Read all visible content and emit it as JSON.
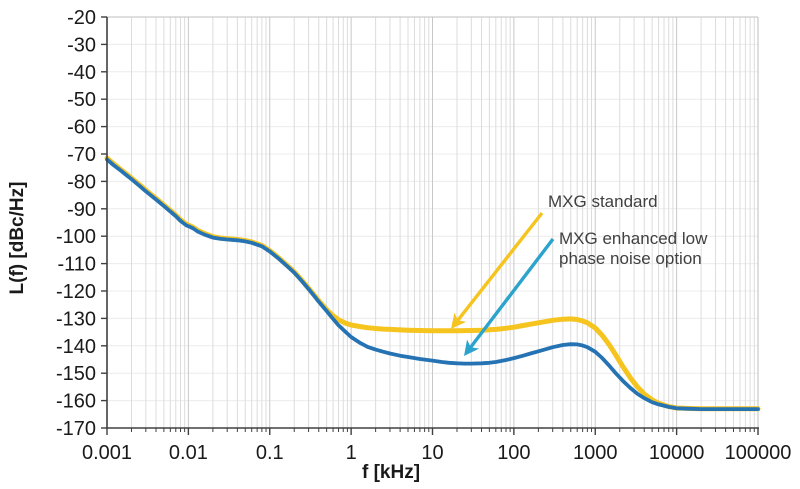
{
  "chart_data": {
    "type": "line",
    "x_scale": "log",
    "title": "",
    "xlabel": "f [kHz]",
    "ylabel": "L(f) [dBc/Hz]",
    "xlim": [
      0.001,
      100000
    ],
    "ylim": [
      -170,
      -20
    ],
    "grid": {
      "vertical_log_minor": true,
      "horizontal": true
    },
    "legend_position": "none",
    "x_tick_labels": [
      "0.001",
      "0.01",
      "0.1",
      "1",
      "10",
      "100",
      "1000",
      "10000",
      "100000"
    ],
    "y_ticks": [
      -20,
      -30,
      -40,
      -50,
      -60,
      -70,
      -80,
      -90,
      -100,
      -110,
      -120,
      -130,
      -140,
      -150,
      -160,
      -170
    ],
    "colors": {
      "standard_curve": "#F5C41F",
      "enhanced_curve": "#2673B4",
      "standard_arrow": "#F5C41F",
      "enhanced_arrow": "#2BA3CC",
      "axis": "#404040",
      "tick_text": "#1a1a1a",
      "grid_minor": "#dcdcdc",
      "grid_major": "#c8c8c8",
      "grid_horizontal": "#ececec",
      "border": "#bfbfbf",
      "annotation_text": "#404040"
    },
    "series": [
      {
        "name": "MXG standard",
        "color": "#F5C41F",
        "points": [
          [
            0.001,
            -71.5
          ],
          [
            0.0012,
            -73.5
          ],
          [
            0.0015,
            -75.8
          ],
          [
            0.002,
            -78.8
          ],
          [
            0.0025,
            -81.2
          ],
          [
            0.003,
            -83.2
          ],
          [
            0.004,
            -86.2
          ],
          [
            0.005,
            -88.6
          ],
          [
            0.006,
            -90.6
          ],
          [
            0.007,
            -92.3
          ],
          [
            0.008,
            -94.0
          ],
          [
            0.009,
            -95.2
          ],
          [
            0.0095,
            -95.7
          ],
          [
            0.0105,
            -96.2
          ],
          [
            0.0115,
            -96.8
          ],
          [
            0.013,
            -97.9
          ],
          [
            0.016,
            -99.1
          ],
          [
            0.02,
            -100.2
          ],
          [
            0.025,
            -100.7
          ],
          [
            0.03,
            -100.9
          ],
          [
            0.04,
            -101.2
          ],
          [
            0.05,
            -101.6
          ],
          [
            0.06,
            -102.1
          ],
          [
            0.08,
            -103.4
          ],
          [
            0.1,
            -105.3
          ],
          [
            0.13,
            -108.0
          ],
          [
            0.16,
            -110.4
          ],
          [
            0.2,
            -113.0
          ],
          [
            0.25,
            -116.2
          ],
          [
            0.3,
            -119.0
          ],
          [
            0.35,
            -121.4
          ],
          [
            0.4,
            -123.5
          ],
          [
            0.5,
            -126.8
          ],
          [
            0.6,
            -129.0
          ],
          [
            0.7,
            -130.5
          ],
          [
            0.85,
            -131.7
          ],
          [
            1,
            -132.4
          ],
          [
            1.3,
            -133.0
          ],
          [
            1.6,
            -133.4
          ],
          [
            2,
            -133.7
          ],
          [
            2.5,
            -133.9
          ],
          [
            3,
            -134.0
          ],
          [
            4,
            -134.2
          ],
          [
            5,
            -134.3
          ],
          [
            7,
            -134.4
          ],
          [
            10,
            -134.5
          ],
          [
            15,
            -134.5
          ],
          [
            20,
            -134.5
          ],
          [
            30,
            -134.4
          ],
          [
            40,
            -134.3
          ],
          [
            60,
            -134.0
          ],
          [
            80,
            -133.6
          ],
          [
            100,
            -133.2
          ],
          [
            130,
            -132.6
          ],
          [
            160,
            -132.1
          ],
          [
            200,
            -131.6
          ],
          [
            250,
            -131.1
          ],
          [
            300,
            -130.7
          ],
          [
            400,
            -130.3
          ],
          [
            500,
            -130.2
          ],
          [
            600,
            -130.4
          ],
          [
            700,
            -130.9
          ],
          [
            800,
            -131.6
          ],
          [
            1000,
            -133.5
          ],
          [
            1200,
            -136.0
          ],
          [
            1500,
            -139.8
          ],
          [
            1800,
            -143.5
          ],
          [
            2200,
            -147.7
          ],
          [
            2700,
            -151.7
          ],
          [
            3300,
            -155.0
          ],
          [
            4000,
            -157.6
          ],
          [
            5000,
            -159.7
          ],
          [
            6000,
            -161.0
          ],
          [
            8000,
            -162.2
          ],
          [
            10000,
            -162.7
          ],
          [
            15000,
            -162.9
          ],
          [
            20000,
            -163.0
          ],
          [
            30000,
            -163.0
          ],
          [
            50000,
            -163.0
          ],
          [
            70000,
            -163.0
          ],
          [
            100000,
            -163.0
          ]
        ]
      },
      {
        "name": "MXG enhanced low phase noise option",
        "color": "#2673B4",
        "points": [
          [
            0.001,
            -72.0
          ],
          [
            0.0012,
            -74.0
          ],
          [
            0.0015,
            -76.2
          ],
          [
            0.002,
            -79.2
          ],
          [
            0.0025,
            -81.6
          ],
          [
            0.003,
            -83.6
          ],
          [
            0.004,
            -86.6
          ],
          [
            0.005,
            -89.0
          ],
          [
            0.006,
            -91.0
          ],
          [
            0.007,
            -92.7
          ],
          [
            0.008,
            -94.4
          ],
          [
            0.009,
            -95.6
          ],
          [
            0.0095,
            -96.1
          ],
          [
            0.0105,
            -96.6
          ],
          [
            0.0115,
            -97.2
          ],
          [
            0.013,
            -98.3
          ],
          [
            0.016,
            -99.5
          ],
          [
            0.02,
            -100.5
          ],
          [
            0.025,
            -101.0
          ],
          [
            0.03,
            -101.2
          ],
          [
            0.04,
            -101.5
          ],
          [
            0.05,
            -101.9
          ],
          [
            0.06,
            -102.4
          ],
          [
            0.08,
            -103.7
          ],
          [
            0.1,
            -105.6
          ],
          [
            0.13,
            -108.3
          ],
          [
            0.16,
            -110.7
          ],
          [
            0.2,
            -113.3
          ],
          [
            0.25,
            -116.5
          ],
          [
            0.3,
            -119.3
          ],
          [
            0.35,
            -121.7
          ],
          [
            0.4,
            -123.9
          ],
          [
            0.5,
            -127.3
          ],
          [
            0.6,
            -130.2
          ],
          [
            0.7,
            -132.5
          ],
          [
            0.85,
            -134.9
          ],
          [
            1,
            -136.8
          ],
          [
            1.3,
            -139.0
          ],
          [
            1.6,
            -140.4
          ],
          [
            2,
            -141.4
          ],
          [
            2.5,
            -142.2
          ],
          [
            3,
            -142.8
          ],
          [
            4,
            -143.6
          ],
          [
            5,
            -144.1
          ],
          [
            7,
            -144.8
          ],
          [
            10,
            -145.4
          ],
          [
            13,
            -145.9
          ],
          [
            16,
            -146.2
          ],
          [
            20,
            -146.4
          ],
          [
            25,
            -146.5
          ],
          [
            30,
            -146.5
          ],
          [
            40,
            -146.4
          ],
          [
            50,
            -146.2
          ],
          [
            60,
            -145.9
          ],
          [
            80,
            -145.2
          ],
          [
            100,
            -144.5
          ],
          [
            130,
            -143.6
          ],
          [
            160,
            -142.8
          ],
          [
            200,
            -142.0
          ],
          [
            250,
            -141.2
          ],
          [
            300,
            -140.5
          ],
          [
            400,
            -139.7
          ],
          [
            500,
            -139.4
          ],
          [
            600,
            -139.5
          ],
          [
            700,
            -139.9
          ],
          [
            800,
            -140.5
          ],
          [
            1000,
            -142.2
          ],
          [
            1200,
            -144.3
          ],
          [
            1500,
            -147.4
          ],
          [
            1800,
            -150.1
          ],
          [
            2200,
            -152.9
          ],
          [
            2700,
            -155.4
          ],
          [
            3300,
            -157.5
          ],
          [
            4000,
            -159.1
          ],
          [
            5000,
            -160.6
          ],
          [
            6000,
            -161.4
          ],
          [
            8000,
            -162.3
          ],
          [
            10000,
            -162.8
          ],
          [
            15000,
            -163.0
          ],
          [
            20000,
            -163.1
          ],
          [
            30000,
            -163.1
          ],
          [
            50000,
            -163.1
          ],
          [
            70000,
            -163.1
          ],
          [
            100000,
            -163.1
          ]
        ]
      }
    ],
    "annotations": [
      {
        "text": "MXG standard",
        "color": "#F5C41F"
      },
      {
        "text": "MXG enhanced low\nphase noise option",
        "color": "#2BA3CC"
      }
    ]
  }
}
